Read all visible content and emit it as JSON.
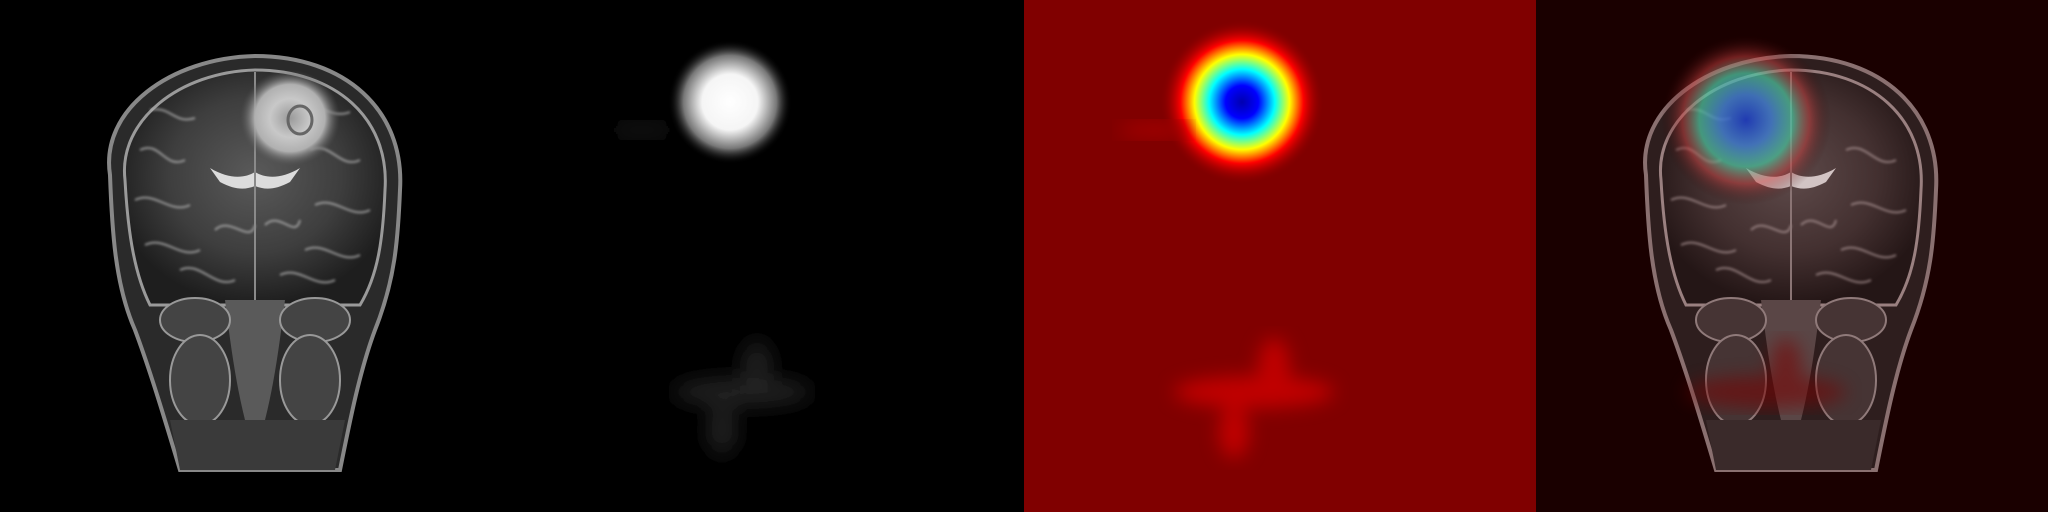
{
  "panels": [
    {
      "name": "mri-coronal-slice",
      "background": "#000000"
    },
    {
      "name": "grayscale-activation-map",
      "background": "#000000"
    },
    {
      "name": "jet-colormap-heatmap",
      "background": "#800000"
    },
    {
      "name": "heatmap-overlay-on-mri",
      "background": "#1a0000"
    }
  ],
  "colors": {
    "jet_background": "#800000",
    "jet_hot_outer": "#ff0000",
    "jet_yellow": "#ffff00",
    "jet_cyan": "#00ffff",
    "jet_blue": "#0000cc",
    "activation_white": "#ffffff"
  }
}
